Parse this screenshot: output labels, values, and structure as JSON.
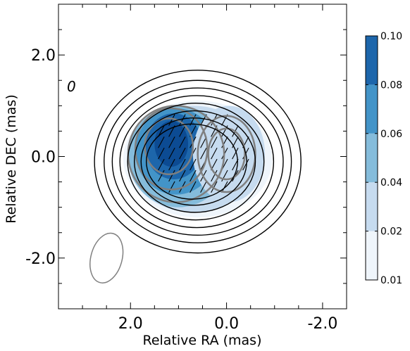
{
  "chart_data": {
    "type": "contour",
    "xlabel": "Relative RA (mas)",
    "ylabel": "Relative DEC (mas)",
    "xlim": [
      3.5,
      -2.5
    ],
    "ylim": [
      -3.0,
      3.0
    ],
    "x_ticks": [
      {
        "value": 2.0,
        "label": "2.0"
      },
      {
        "value": 0.0,
        "label": "0.0"
      },
      {
        "value": -2.0,
        "label": "-2.0"
      }
    ],
    "y_ticks": [
      {
        "value": 2.0,
        "label": "2.0"
      },
      {
        "value": 0.0,
        "label": "0.0"
      },
      {
        "value": -2.0,
        "label": "-2.0"
      }
    ],
    "annotation": {
      "text": "0",
      "x": 3.25,
      "y": 1.4
    },
    "beam": {
      "x": 2.5,
      "y": -2.0,
      "major": 1.0,
      "minor": 0.65,
      "color": "#808080"
    },
    "colorbar": {
      "levels": [
        "0.01",
        "0.02",
        "0.04",
        "0.06",
        "0.08",
        "0.10"
      ],
      "colors": [
        "#eff5fb",
        "#c6dbef",
        "#85bcdb",
        "#4394c8",
        "#1d66ab",
        "#0c4b93"
      ]
    },
    "total_intensity_contours": {
      "color": "#000000",
      "levels": [
        {
          "rx": 2.15,
          "ry": 1.8,
          "cx": 0.6,
          "cy": -0.1
        },
        {
          "rx": 1.95,
          "ry": 1.6,
          "cx": 0.6,
          "cy": -0.1
        },
        {
          "rx": 1.78,
          "ry": 1.45,
          "cx": 0.6,
          "cy": -0.1
        },
        {
          "rx": 1.6,
          "ry": 1.3,
          "cx": 0.62,
          "cy": -0.1
        },
        {
          "rx": 1.42,
          "ry": 1.15,
          "cx": 0.64,
          "cy": -0.1
        },
        {
          "rx": 1.26,
          "ry": 1.0,
          "cx": 0.66,
          "cy": -0.1
        },
        {
          "rx": 1.1,
          "ry": 0.86,
          "cx": 0.68,
          "cy": -0.1
        },
        {
          "rx": 0.95,
          "ry": 0.74,
          "cx": 0.72,
          "cy": -0.1
        }
      ]
    },
    "polarized_fill": [
      {
        "level": "0.01",
        "cx": 0.6,
        "cy": -0.05,
        "rx": 1.55,
        "ry": 1.15
      },
      {
        "level": "0.02",
        "cx": 0.7,
        "cy": -0.05,
        "rx": 1.35,
        "ry": 1.05
      },
      {
        "level": "0.04",
        "cx": 1.0,
        "cy": 0.0,
        "rx": 1.05,
        "ry": 1.0
      },
      {
        "level": "0.06",
        "cx": 1.05,
        "cy": 0.1,
        "rx": 0.85,
        "ry": 0.85
      },
      {
        "level": "0.08",
        "cx": 1.1,
        "cy": 0.2,
        "rx": 0.6,
        "ry": 0.65
      },
      {
        "level": "0.10",
        "cx": 1.15,
        "cy": 0.25,
        "rx": 0.35,
        "ry": 0.45
      },
      {
        "level": "0.02",
        "cx": -0.05,
        "cy": 0.05,
        "rx": 0.75,
        "ry": 0.95
      }
    ],
    "grey_contours": [
      {
        "cx": 1.2,
        "cy": 0.2,
        "rx": 0.5,
        "ry": 0.55
      },
      {
        "cx": 1.15,
        "cy": 0.15,
        "rx": 0.75,
        "ry": 0.8
      },
      {
        "cx": 1.05,
        "cy": 0.05,
        "rx": 1.0,
        "ry": 0.95
      },
      {
        "cx": 0.0,
        "cy": 0.05,
        "rx": 0.38,
        "ry": 0.5
      },
      {
        "cx": 0.0,
        "cy": 0.05,
        "rx": 0.6,
        "ry": 0.75
      }
    ],
    "evpa_ticks": {
      "x_range": [
        -0.4,
        1.4
      ],
      "y_range": [
        -0.6,
        0.8
      ],
      "step": 0.22,
      "angle_deg": 62
    }
  }
}
